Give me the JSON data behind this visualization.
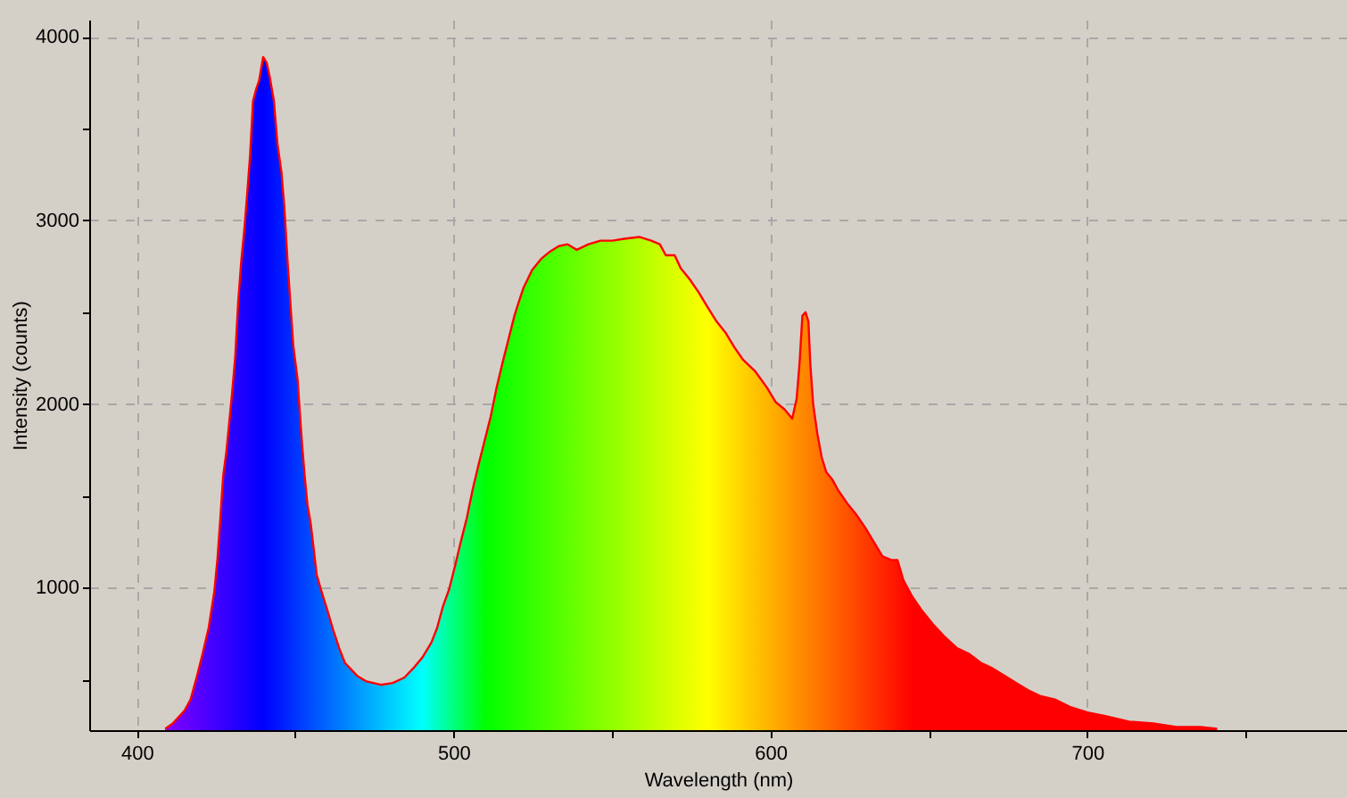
{
  "chart_data": {
    "type": "area",
    "xlabel": "Wavelength (nm)",
    "ylabel": "Intensity (counts)",
    "xlim": [
      385,
      782
    ],
    "ylim": [
      223,
      4094
    ],
    "xticks": [
      400,
      {
        "value": 450,
        "label": null
      },
      500,
      {
        "value": 550,
        "label": null
      },
      600,
      {
        "value": 650,
        "label": null
      },
      700,
      {
        "value": 750,
        "label": null
      }
    ],
    "yticks": [
      {
        "value": 500,
        "label": null
      },
      1000,
      {
        "value": 1500,
        "label": null
      },
      2000,
      {
        "value": 2500,
        "label": null
      },
      3000,
      {
        "value": 3500,
        "label": null
      },
      4000
    ],
    "grid": true,
    "x": [
      409.0,
      411.4,
      415.1,
      417.0,
      418.9,
      420.8,
      422.7,
      424.5,
      425.5,
      426.4,
      427.3,
      428.3,
      429.2,
      430.1,
      431.1,
      432.0,
      433.0,
      433.9,
      434.8,
      435.8,
      436.7,
      437.6,
      438.6,
      439.9,
      441.0,
      442.0,
      443.3,
      444.4,
      445.7,
      446.6,
      447.6,
      448.5,
      449.4,
      450.8,
      451.3,
      452.1,
      453.0,
      453.9,
      454.9,
      455.8,
      456.8,
      458.3,
      460.1,
      462.0,
      463.9,
      465.7,
      469.5,
      472.3,
      477.0,
      480.8,
      484.5,
      487.3,
      490.2,
      493.0,
      494.8,
      496.7,
      498.6,
      500.5,
      502.3,
      504.2,
      506.1,
      507.9,
      509.8,
      511.7,
      513.6,
      515.4,
      517.3,
      519.2,
      520.1,
      522.0,
      524.8,
      527.6,
      530.4,
      533.2,
      536.0,
      538.9,
      542.6,
      546.4,
      550.1,
      553.9,
      558.6,
      562.4,
      565.1,
      567.0,
      569.8,
      571.7,
      574.5,
      577.3,
      580.1,
      583.0,
      585.8,
      588.6,
      591.4,
      595.1,
      598.9,
      601.7,
      604.5,
      606.9,
      608.3,
      609.2,
      610.1,
      611.1,
      612.0,
      612.6,
      613.5,
      614.8,
      616.2,
      617.6,
      619.5,
      621.4,
      624.2,
      627.0,
      629.8,
      632.6,
      635.4,
      638.2,
      640.1,
      642.0,
      644.8,
      647.6,
      651.3,
      655.1,
      658.9,
      662.6,
      666.4,
      670.1,
      673.9,
      677.6,
      681.4,
      685.1,
      689.8,
      694.5,
      700.1,
      705.7,
      713.2,
      720.8,
      728.2,
      735.7,
      741.0
    ],
    "series": [
      {
        "color": "#ff0000",
        "values": [
          230,
          260,
          330,
          390,
          510,
          640,
          780,
          980,
          1160,
          1380,
          1610,
          1740,
          1900,
          2060,
          2260,
          2550,
          2780,
          2940,
          3130,
          3360,
          3650,
          3710,
          3760,
          3890,
          3860,
          3780,
          3650,
          3420,
          3260,
          3070,
          2780,
          2550,
          2320,
          2130,
          2000,
          1800,
          1610,
          1450,
          1350,
          1220,
          1070,
          980,
          880,
          770,
          670,
          590,
          520,
          490,
          470,
          480,
          510,
          560,
          620,
          700,
          780,
          900,
          990,
          1120,
          1250,
          1380,
          1540,
          1670,
          1800,
          1930,
          2090,
          2220,
          2350,
          2480,
          2530,
          2630,
          2730,
          2790,
          2830,
          2860,
          2870,
          2840,
          2870,
          2890,
          2890,
          2900,
          2910,
          2890,
          2870,
          2810,
          2810,
          2740,
          2680,
          2610,
          2530,
          2450,
          2390,
          2310,
          2240,
          2180,
          2090,
          2010,
          1970,
          1920,
          2030,
          2220,
          2480,
          2500,
          2450,
          2220,
          2000,
          1840,
          1710,
          1630,
          1590,
          1530,
          1460,
          1400,
          1330,
          1250,
          1170,
          1150,
          1150,
          1040,
          950,
          880,
          800,
          730,
          670,
          640,
          590,
          560,
          520,
          480,
          440,
          410,
          390,
          350,
          320,
          300,
          270,
          260,
          240,
          240,
          230
        ],
        "colors": [
          "#8400ff",
          "#7a00ff",
          "#6a00ff",
          "#6200ff",
          "#5a00ff",
          "#5200ff",
          "#4a00ff",
          "#4200ff",
          "#3e00ff",
          "#3a00ff",
          "#3600ff",
          "#3200ff",
          "#2e00ff",
          "#2a00ff",
          "#2600ff",
          "#2200ff",
          "#1e00ff",
          "#1a00ff",
          "#1600ff",
          "#1200ff",
          "#0e00ff",
          "#0a00ff",
          "#0600ff",
          "#0000ff",
          "#0005ff",
          "#000aff",
          "#0011ff",
          "#0016ff",
          "#001dff",
          "#0022ff",
          "#0027ff",
          "#002bff",
          "#0030ff",
          "#0037ff",
          "#003aff",
          "#003eff",
          "#0042ff",
          "#0047ff",
          "#004cff",
          "#0051ff",
          "#0056ff",
          "#005dff",
          "#0067ff",
          "#0070ff",
          "#007aff",
          "#0083ff",
          "#0096ff",
          "#00a5ff",
          "#00bdff",
          "#00d0ff",
          "#00e3ff",
          "#00f1ff",
          "#00fffc",
          "#00ffd9",
          "#00ffc2",
          "#00ffaa",
          "#00ff91",
          "#00ff79",
          "#00ff62",
          "#00ff4a",
          "#00ff32",
          "#00ff1b",
          "#00ff03",
          "#06ff00",
          "#0dff00",
          "#14ff00",
          "#1bff00",
          "#22ff00",
          "#25ff00",
          "#2cff00",
          "#36ff00",
          "#40ff00",
          "#4aff00",
          "#55ff00",
          "#5fff00",
          "#69ff00",
          "#77ff00",
          "#85ff00",
          "#92ff00",
          "#a0ff00",
          "#b1ff00",
          "#bfff00",
          "#c9ff00",
          "#d0ff00",
          "#daff00",
          "#e1ff00",
          "#ebff00",
          "#f5ff00",
          "#ffff00",
          "#fff300",
          "#ffe800",
          "#ffdd00",
          "#ffd200",
          "#ffc400",
          "#ffb500",
          "#ffaa00",
          "#ff9f00",
          "#ff9500",
          "#ff9000",
          "#ff8c00",
          "#ff8900",
          "#ff8500",
          "#ff8100",
          "#ff7f00",
          "#ff7c00",
          "#ff7600",
          "#ff7100",
          "#ff6b00",
          "#ff6400",
          "#ff5d00",
          "#ff5200",
          "#ff4700",
          "#ff3c00",
          "#ff3100",
          "#ff2600",
          "#ff1b00",
          "#ff1300",
          "#ff0c00",
          "#ff0100",
          "#ff0000",
          "#ff0000",
          "#ff0000",
          "#ff0000",
          "#ff0000",
          "#ff0000",
          "#ff0000",
          "#ff0000",
          "#ff0000",
          "#ff0000",
          "#ff0000",
          "#ff0000",
          "#ff0000",
          "#ff0000",
          "#ff0000",
          "#ff0000",
          "#ff0000",
          "#ff0000",
          "#ff0000",
          "#ff0000"
        ]
      }
    ]
  }
}
